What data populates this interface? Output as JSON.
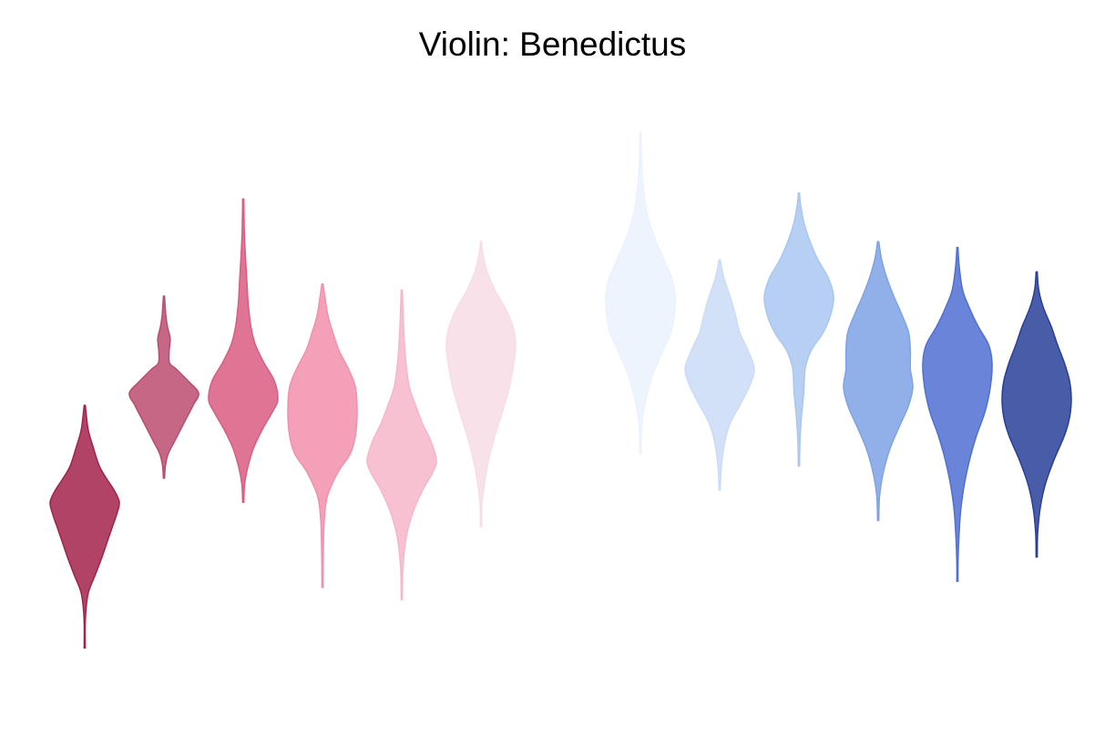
{
  "chart_data": {
    "type": "violin",
    "title": "Violin: Benedictus",
    "xlabel": "",
    "ylabel": "",
    "axes_visible": false,
    "grid": false,
    "ylim": [
      0,
      100
    ],
    "violins": [
      {
        "color": "#a3224b",
        "ymin": 7,
        "ymax": 47,
        "profile": [
          [
            7,
            0
          ],
          [
            12,
            0.02
          ],
          [
            16,
            0.1
          ],
          [
            19,
            0.3
          ],
          [
            22,
            0.5
          ],
          [
            25,
            0.68
          ],
          [
            27,
            0.8
          ],
          [
            29,
            0.92
          ],
          [
            31,
            1.0
          ],
          [
            33,
            0.85
          ],
          [
            35,
            0.62
          ],
          [
            37,
            0.42
          ],
          [
            40,
            0.25
          ],
          [
            43,
            0.1
          ],
          [
            47,
            0
          ]
        ]
      },
      {
        "color": "#bb4c70",
        "ymin": 35,
        "ymax": 65,
        "profile": [
          [
            35,
            0
          ],
          [
            37,
            0.04
          ],
          [
            39,
            0.12
          ],
          [
            41,
            0.3
          ],
          [
            43,
            0.48
          ],
          [
            45,
            0.66
          ],
          [
            47,
            0.84
          ],
          [
            49,
            1.0
          ],
          [
            51,
            0.7
          ],
          [
            53,
            0.35
          ],
          [
            54,
            0.16
          ],
          [
            56,
            0.15
          ],
          [
            58,
            0.18
          ],
          [
            60,
            0.1
          ],
          [
            62,
            0.05
          ],
          [
            65,
            0
          ]
        ]
      },
      {
        "color": "#da5c83",
        "ymin": 31,
        "ymax": 81,
        "profile": [
          [
            31,
            0
          ],
          [
            34,
            0.04
          ],
          [
            37,
            0.14
          ],
          [
            40,
            0.3
          ],
          [
            43,
            0.55
          ],
          [
            46,
            0.85
          ],
          [
            48,
            1.0
          ],
          [
            51,
            0.9
          ],
          [
            54,
            0.6
          ],
          [
            57,
            0.35
          ],
          [
            60,
            0.22
          ],
          [
            64,
            0.14
          ],
          [
            68,
            0.1
          ],
          [
            72,
            0.06
          ],
          [
            76,
            0.03
          ],
          [
            81,
            0
          ]
        ]
      },
      {
        "color": "#f28fad",
        "ymin": 17,
        "ymax": 67,
        "profile": [
          [
            17,
            0
          ],
          [
            22,
            0.02
          ],
          [
            28,
            0.05
          ],
          [
            32,
            0.14
          ],
          [
            36,
            0.45
          ],
          [
            39,
            0.8
          ],
          [
            42,
            0.95
          ],
          [
            46,
            1.0
          ],
          [
            50,
            0.95
          ],
          [
            53,
            0.75
          ],
          [
            56,
            0.48
          ],
          [
            59,
            0.3
          ],
          [
            62,
            0.15
          ],
          [
            67,
            0
          ]
        ]
      },
      {
        "color": "#f7b6c9",
        "ymin": 15,
        "ymax": 66,
        "profile": [
          [
            15,
            0
          ],
          [
            20,
            0.03
          ],
          [
            25,
            0.12
          ],
          [
            29,
            0.3
          ],
          [
            33,
            0.6
          ],
          [
            36,
            0.9
          ],
          [
            38,
            1.0
          ],
          [
            41,
            0.85
          ],
          [
            44,
            0.6
          ],
          [
            47,
            0.4
          ],
          [
            50,
            0.22
          ],
          [
            54,
            0.12
          ],
          [
            59,
            0.06
          ],
          [
            66,
            0
          ]
        ]
      },
      {
        "color": "#f8dce6",
        "ymin": 27,
        "ymax": 74,
        "profile": [
          [
            27,
            0
          ],
          [
            31,
            0.03
          ],
          [
            36,
            0.15
          ],
          [
            41,
            0.35
          ],
          [
            46,
            0.62
          ],
          [
            50,
            0.82
          ],
          [
            54,
            0.95
          ],
          [
            57,
            1.0
          ],
          [
            60,
            0.92
          ],
          [
            63,
            0.7
          ],
          [
            66,
            0.4
          ],
          [
            69,
            0.18
          ],
          [
            72,
            0.05
          ],
          [
            74,
            0
          ]
        ]
      },
      {
        "color": "#eaf2fd",
        "ymin": 39,
        "ymax": 92,
        "profile": [
          [
            39,
            0
          ],
          [
            43,
            0.03
          ],
          [
            47,
            0.12
          ],
          [
            52,
            0.35
          ],
          [
            56,
            0.65
          ],
          [
            59,
            0.88
          ],
          [
            62,
            0.98
          ],
          [
            65,
            1.0
          ],
          [
            68,
            0.9
          ],
          [
            71,
            0.68
          ],
          [
            74,
            0.45
          ],
          [
            78,
            0.22
          ],
          [
            82,
            0.1
          ],
          [
            87,
            0.03
          ],
          [
            92,
            0
          ]
        ]
      },
      {
        "color": "#cadcf6",
        "ymin": 33,
        "ymax": 71,
        "profile": [
          [
            33,
            0
          ],
          [
            37,
            0.05
          ],
          [
            41,
            0.15
          ],
          [
            44,
            0.3
          ],
          [
            47,
            0.58
          ],
          [
            50,
            0.85
          ],
          [
            53,
            1.0
          ],
          [
            56,
            0.82
          ],
          [
            59,
            0.58
          ],
          [
            62,
            0.45
          ],
          [
            65,
            0.3
          ],
          [
            68,
            0.12
          ],
          [
            71,
            0
          ]
        ]
      },
      {
        "color": "#a9c7f0",
        "ymin": 37,
        "ymax": 82,
        "profile": [
          [
            37,
            0
          ],
          [
            41,
            0.03
          ],
          [
            45,
            0.07
          ],
          [
            49,
            0.14
          ],
          [
            53,
            0.18
          ],
          [
            56,
            0.35
          ],
          [
            59,
            0.7
          ],
          [
            62,
            0.92
          ],
          [
            65,
            1.0
          ],
          [
            68,
            0.85
          ],
          [
            71,
            0.55
          ],
          [
            74,
            0.32
          ],
          [
            77,
            0.15
          ],
          [
            80,
            0.05
          ],
          [
            82,
            0
          ]
        ]
      },
      {
        "color": "#7ea2e5",
        "ymin": 28,
        "ymax": 74,
        "profile": [
          [
            28,
            0
          ],
          [
            32,
            0.04
          ],
          [
            36,
            0.15
          ],
          [
            40,
            0.35
          ],
          [
            44,
            0.65
          ],
          [
            47,
            0.88
          ],
          [
            50,
            1.0
          ],
          [
            53,
            0.93
          ],
          [
            56,
            0.93
          ],
          [
            59,
            0.88
          ],
          [
            62,
            0.68
          ],
          [
            65,
            0.45
          ],
          [
            68,
            0.25
          ],
          [
            71,
            0.1
          ],
          [
            74,
            0
          ]
        ]
      },
      {
        "color": "#4f6fd2",
        "ymin": 18,
        "ymax": 73,
        "profile": [
          [
            18,
            0
          ],
          [
            22,
            0.02
          ],
          [
            26,
            0.05
          ],
          [
            30,
            0.1
          ],
          [
            34,
            0.2
          ],
          [
            38,
            0.35
          ],
          [
            42,
            0.55
          ],
          [
            46,
            0.8
          ],
          [
            50,
            0.95
          ],
          [
            54,
            1.0
          ],
          [
            57,
            0.9
          ],
          [
            60,
            0.6
          ],
          [
            63,
            0.35
          ],
          [
            66,
            0.15
          ],
          [
            70,
            0.05
          ],
          [
            73,
            0
          ]
        ]
      },
      {
        "color": "#293f98",
        "ymin": 22,
        "ymax": 69,
        "profile": [
          [
            22,
            0
          ],
          [
            26,
            0.03
          ],
          [
            30,
            0.1
          ],
          [
            34,
            0.25
          ],
          [
            38,
            0.5
          ],
          [
            42,
            0.8
          ],
          [
            45,
            0.95
          ],
          [
            48,
            1.0
          ],
          [
            51,
            0.95
          ],
          [
            54,
            0.8
          ],
          [
            57,
            0.6
          ],
          [
            60,
            0.42
          ],
          [
            63,
            0.2
          ],
          [
            66,
            0.06
          ],
          [
            69,
            0
          ]
        ]
      }
    ]
  }
}
